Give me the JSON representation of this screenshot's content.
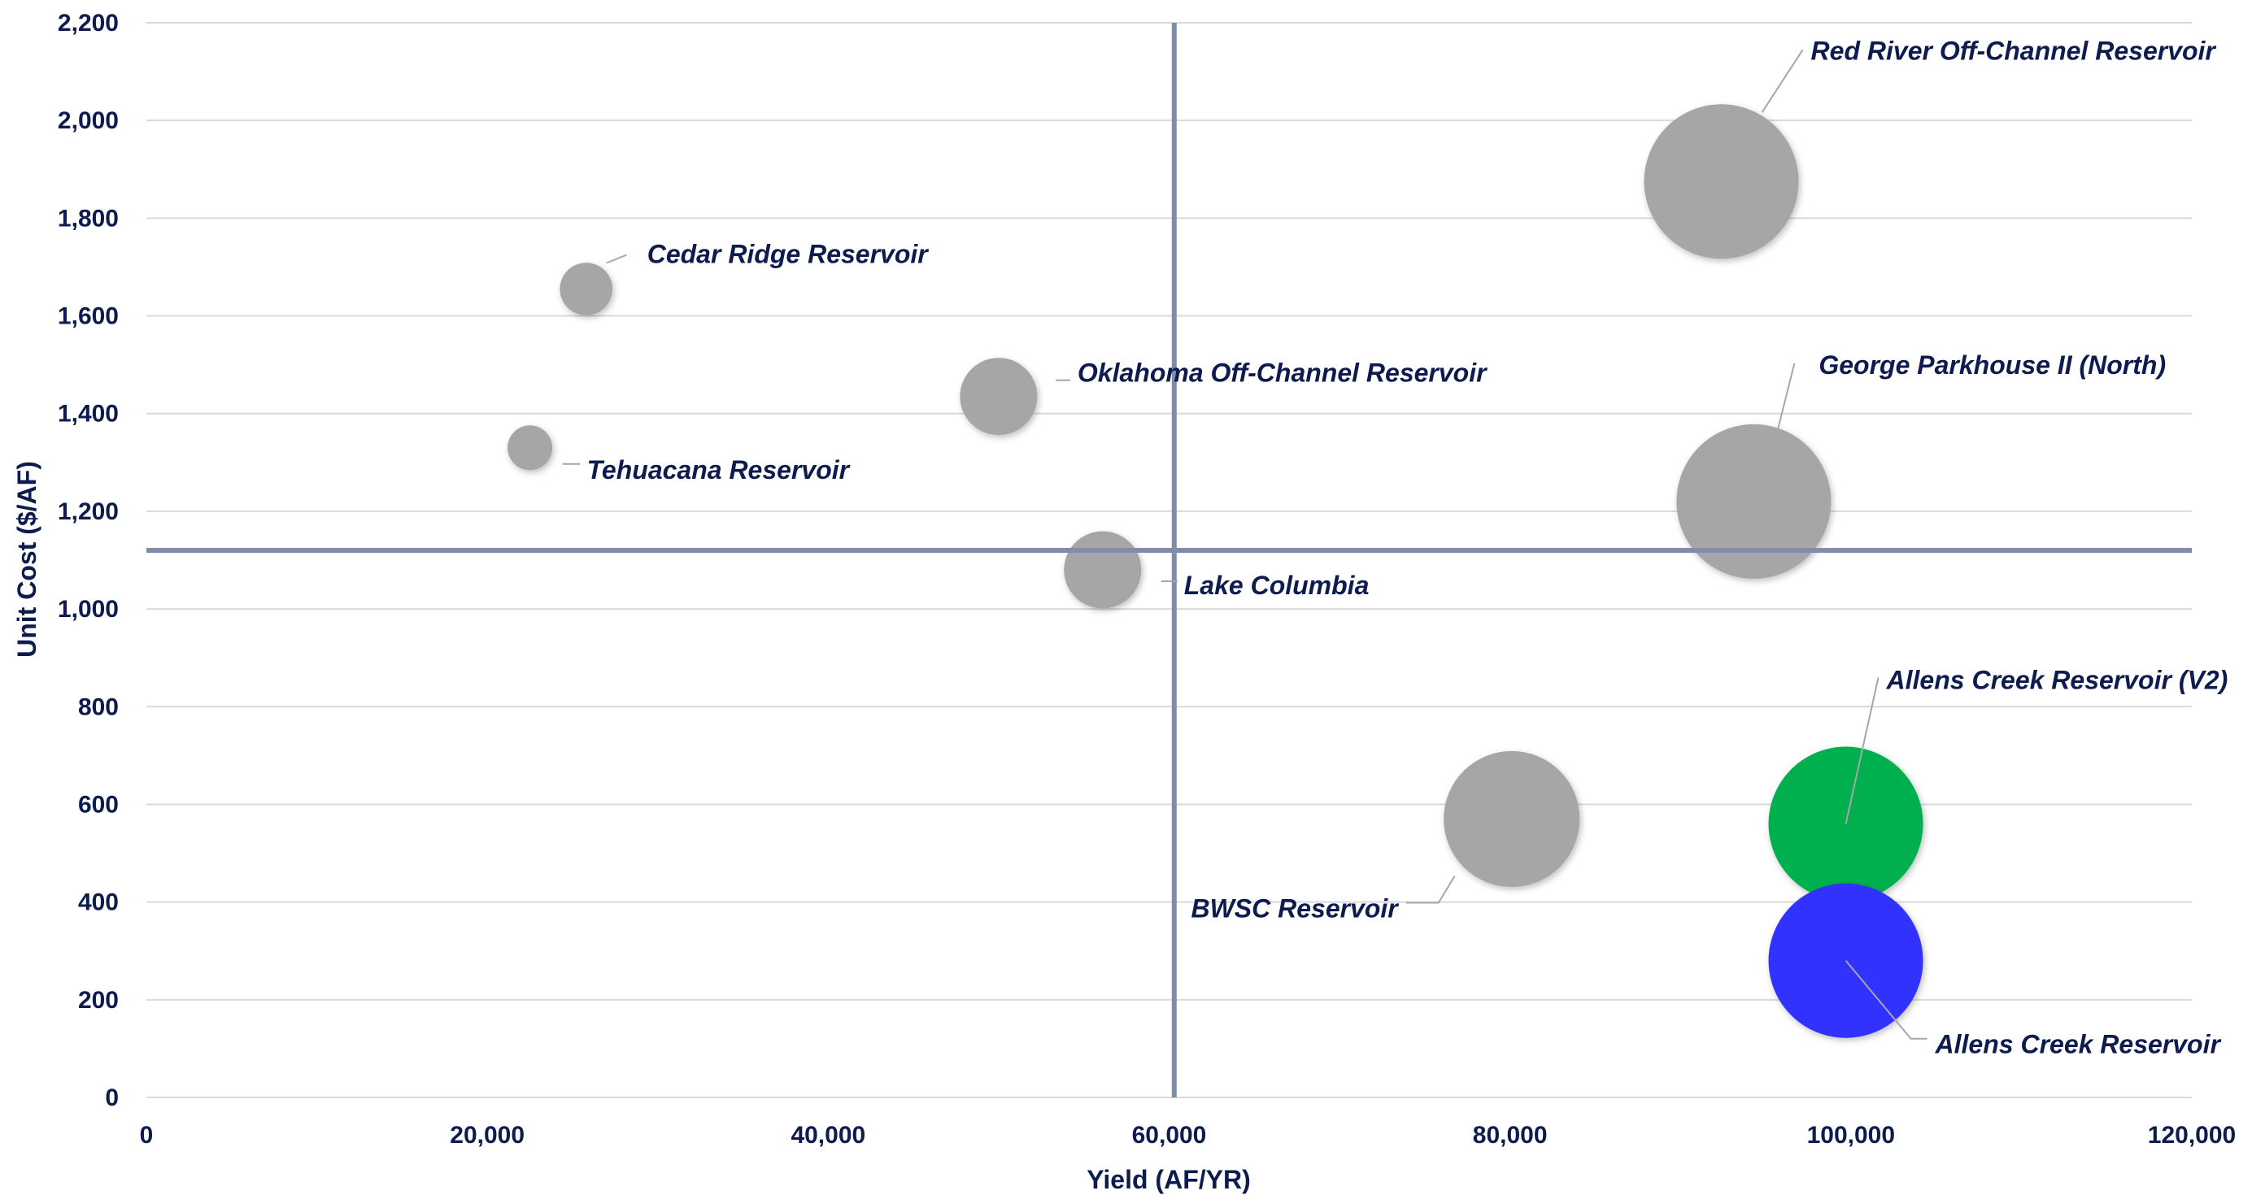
{
  "chart_data": {
    "type": "bubble",
    "title": "",
    "xlabel": "Yield (AF/YR)",
    "ylabel": "Unit Cost ($/AF)",
    "xlim": [
      0,
      120000
    ],
    "ylim": [
      0,
      2200
    ],
    "x_ticks": [
      0,
      20000,
      40000,
      60000,
      80000,
      100000,
      120000
    ],
    "x_tick_labels": [
      "0",
      "20,000",
      "40,000",
      "60,000",
      "80,000",
      "100,000",
      "120,000"
    ],
    "y_ticks": [
      0,
      200,
      400,
      600,
      800,
      1000,
      1200,
      1400,
      1600,
      1800,
      2000,
      2200
    ],
    "y_tick_labels": [
      "0",
      "200",
      "400",
      "600",
      "800",
      "1,000",
      "1,200",
      "1,400",
      "1,600",
      "1,800",
      "2,000",
      "2,200"
    ],
    "grid": "horizontal",
    "reference_lines": {
      "x": 60300,
      "y": 1120
    },
    "colors": {
      "default": "#a6a6a6",
      "green": "#00b050",
      "blue": "#3333ff",
      "text": "#0d1b4f",
      "reference": "#7f8cab"
    },
    "points": [
      {
        "name": "Cedar Ridge Reservoir",
        "x": 25800,
        "y": 1655,
        "size": 0.34,
        "color": "#a6a6a6"
      },
      {
        "name": "Tehuacana Reservoir",
        "x": 22500,
        "y": 1330,
        "size": 0.29,
        "color": "#a6a6a6"
      },
      {
        "name": "Oklahoma Off-Channel Reservoir",
        "x": 50000,
        "y": 1435,
        "size": 0.5,
        "color": "#a6a6a6"
      },
      {
        "name": "Lake Columbia",
        "x": 56100,
        "y": 1080,
        "size": 0.5,
        "color": "#a6a6a6"
      },
      {
        "name": "Red River Off-Channel Reservoir",
        "x": 92400,
        "y": 1875,
        "size": 1.0,
        "color": "#a6a6a6"
      },
      {
        "name": "George Parkhouse II (North)",
        "x": 94300,
        "y": 1220,
        "size": 1.0,
        "color": "#a6a6a6"
      },
      {
        "name": "BWSC Reservoir",
        "x": 80100,
        "y": 570,
        "size": 0.88,
        "color": "#a6a6a6"
      },
      {
        "name": "Allens Creek Reservoir (V2)",
        "x": 99700,
        "y": 560,
        "size": 1.0,
        "color": "#00b050"
      },
      {
        "name": "Allens Creek Reservoir",
        "x": 99700,
        "y": 280,
        "size": 1.0,
        "color": "#3333ff"
      }
    ]
  }
}
